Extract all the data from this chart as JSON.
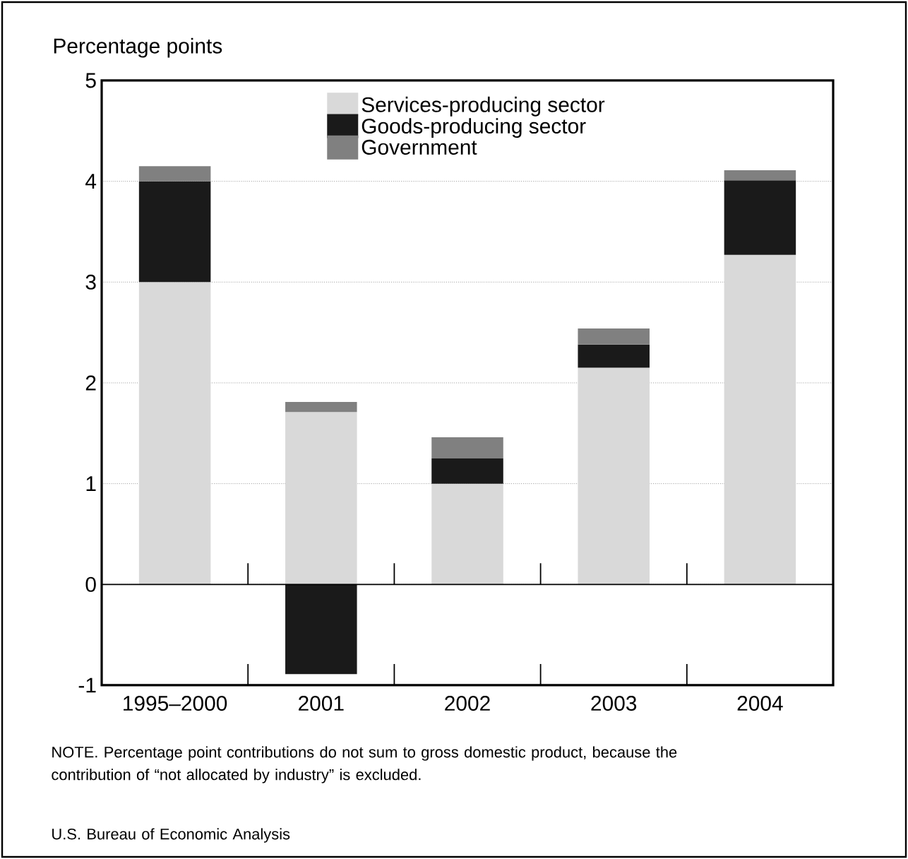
{
  "chart_data": {
    "type": "bar",
    "stacked": true,
    "ylabel": "Percentage points",
    "categories": [
      "1995–2000",
      "2001",
      "2002",
      "2003",
      "2004"
    ],
    "series": [
      {
        "name": "Services-producing sector",
        "color": "#d9d9d9",
        "values": [
          3.0,
          1.71,
          1.0,
          2.15,
          3.27
        ]
      },
      {
        "name": "Goods-producing sector",
        "color": "#1a1a1a",
        "values": [
          1.0,
          -0.89,
          0.25,
          0.23,
          0.74
        ]
      },
      {
        "name": "Government",
        "color": "#808080",
        "values": [
          0.15,
          0.1,
          0.21,
          0.16,
          0.1
        ]
      }
    ],
    "ylim": [
      -1,
      5
    ],
    "yticks": [
      -1,
      0,
      1,
      2,
      3,
      4,
      5
    ],
    "grid": "y",
    "legend": "top",
    "annotations": [
      "NOTE. Percentage point contributions do not sum to gross domestic product, because the contribution of “not allocated by industry” is excluded.",
      "U.S. Bureau of Economic Analysis"
    ]
  }
}
